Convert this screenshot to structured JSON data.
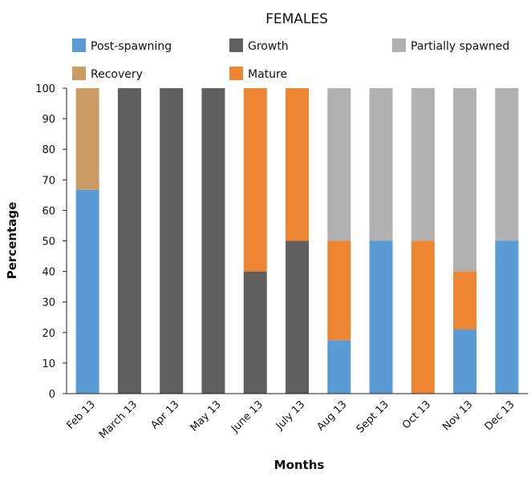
{
  "chart_data": {
    "type": "bar",
    "stacked": true,
    "title": "FEMALES",
    "xlabel": "Months",
    "ylabel": "Percentage",
    "ylim": [
      0,
      100
    ],
    "yticks": [
      0,
      10,
      20,
      30,
      40,
      50,
      60,
      70,
      80,
      90,
      100
    ],
    "grid": false,
    "legend_position": "top",
    "categories": [
      "Feb 13",
      "March 13",
      "Apr 13",
      "May 13",
      "June 13",
      "July 13",
      "Aug 13",
      "Sept 13",
      "Oct 13",
      "Nov 13",
      "Dec 13"
    ],
    "series": [
      {
        "name": "Post-spawning",
        "color": "#5b9bd5",
        "values": [
          66.7,
          0,
          0,
          0,
          0,
          0,
          17.5,
          50,
          0,
          21,
          50
        ]
      },
      {
        "name": "Growth",
        "color": "#5f5f5f",
        "values": [
          0,
          100,
          100,
          100,
          40,
          50,
          0,
          0,
          0,
          0,
          0
        ]
      },
      {
        "name": "Mature",
        "color": "#ed8533",
        "values": [
          0,
          0,
          0,
          0,
          60,
          50,
          32.5,
          0,
          50,
          19,
          0
        ]
      },
      {
        "name": "Partially spawned",
        "color": "#b1b1b1",
        "values": [
          0,
          0,
          0,
          0,
          0,
          0,
          50,
          50,
          50,
          60,
          50
        ]
      },
      {
        "name": "Recovery",
        "color": "#c99d64",
        "values": [
          33.3,
          0,
          0,
          0,
          0,
          0,
          0,
          0,
          0,
          0,
          0
        ]
      }
    ],
    "legend_order": [
      "Post-spawning",
      "Growth",
      "Partially spawned",
      "Recovery",
      "Mature"
    ]
  }
}
